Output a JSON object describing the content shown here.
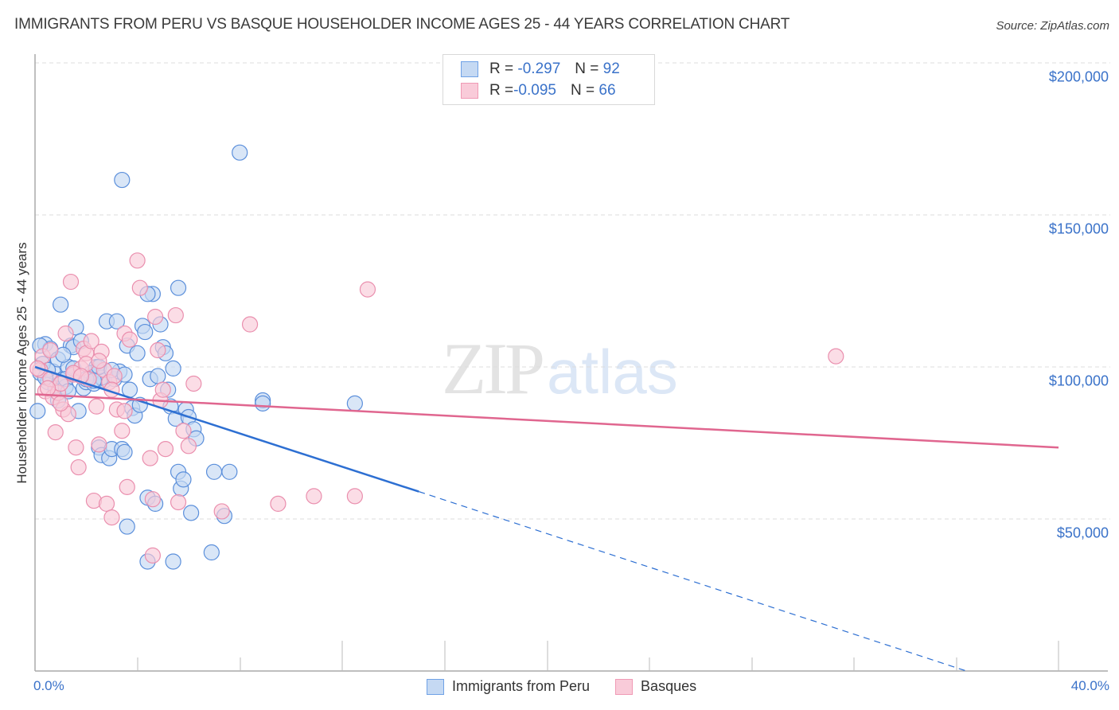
{
  "header": {
    "title": "IMMIGRANTS FROM PERU VS BASQUE HOUSEHOLDER INCOME AGES 25 - 44 YEARS CORRELATION CHART",
    "source": "Source: ZipAtlas.com"
  },
  "legend": {
    "rows": [
      {
        "r_label": "R = ",
        "r_value": "-0.297",
        "n_label": "N = ",
        "n_value": "92",
        "color": "#6fa1e6"
      },
      {
        "r_label": "R = ",
        "r_value": "-0.095",
        "n_label": "N = ",
        "n_value": "66",
        "color": "#f09ab5"
      }
    ]
  },
  "axes": {
    "ylabel": "Householder Income Ages 25 - 44 years",
    "yticks": [
      "$200,000",
      "$150,000",
      "$100,000",
      "$50,000"
    ],
    "xticks": [
      "0.0%",
      "40.0%"
    ]
  },
  "bottom_legend": {
    "series": [
      {
        "label": "Immigrants from Peru"
      },
      {
        "label": "Basques"
      }
    ]
  },
  "watermark": {
    "zip": "ZIP",
    "atlas": "atlas"
  },
  "colors": {
    "blue_fill": "#c5d9f3",
    "blue_stroke": "#5b8fdb",
    "blue_line": "#2d6fd2",
    "pink_fill": "#f9cbd9",
    "pink_stroke": "#ea8fae",
    "pink_line": "#e0668f",
    "tick_text": "#3a72c9"
  },
  "chart_data": {
    "type": "scatter",
    "title": "IMMIGRANTS FROM PERU VS BASQUE HOUSEHOLDER INCOME AGES 25 - 44 YEARS CORRELATION CHART",
    "xlabel": "",
    "ylabel": "Householder Income Ages 25 - 44 years",
    "xlim": [
      0,
      40
    ],
    "ylim": [
      0,
      205000
    ],
    "x_unit": "%",
    "grid": {
      "y_dashed": true,
      "values": [
        50000,
        100000,
        150000,
        200000
      ]
    },
    "legend_position": "bottom-center",
    "series": [
      {
        "name": "Immigrants from Peru",
        "R": -0.297,
        "N": 92,
        "trend": {
          "x": [
            0,
            15
          ],
          "y": [
            100000,
            59000
          ],
          "dashed_extension_to": [
            36.4,
            0
          ]
        },
        "points": [
          [
            0.1,
            85500
          ],
          [
            0.2,
            98000
          ],
          [
            0.3,
            101000
          ],
          [
            0.4,
            107500
          ],
          [
            0.5,
            95000
          ],
          [
            0.6,
            106000
          ],
          [
            0.7,
            98500
          ],
          [
            0.8,
            93000
          ],
          [
            0.9,
            102500
          ],
          [
            1.0,
            120500
          ],
          [
            1.1,
            96000
          ],
          [
            1.2,
            93500
          ],
          [
            1.3,
            100000
          ],
          [
            1.4,
            107000
          ],
          [
            1.5,
            106500
          ],
          [
            1.6,
            113000
          ],
          [
            1.7,
            85500
          ],
          [
            1.8,
            108500
          ],
          [
            1.9,
            93000
          ],
          [
            2.0,
            95000
          ],
          [
            2.2,
            97000
          ],
          [
            2.3,
            94500
          ],
          [
            2.4,
            100000
          ],
          [
            2.5,
            73500
          ],
          [
            2.6,
            71000
          ],
          [
            2.7,
            95500
          ],
          [
            2.8,
            115000
          ],
          [
            2.9,
            70000
          ],
          [
            3.0,
            73000
          ],
          [
            3.1,
            96000
          ],
          [
            3.2,
            115000
          ],
          [
            3.3,
            98500
          ],
          [
            3.4,
            73000
          ],
          [
            3.5,
            72000
          ],
          [
            3.6,
            107000
          ],
          [
            3.7,
            92500
          ],
          [
            3.8,
            86500
          ],
          [
            3.9,
            84000
          ],
          [
            4.0,
            104500
          ],
          [
            4.1,
            87500
          ],
          [
            4.2,
            113500
          ],
          [
            4.3,
            111500
          ],
          [
            4.4,
            57000
          ],
          [
            4.5,
            96000
          ],
          [
            4.6,
            124000
          ],
          [
            4.7,
            55000
          ],
          [
            4.8,
            97000
          ],
          [
            4.9,
            114000
          ],
          [
            5.0,
            106500
          ],
          [
            5.1,
            104500
          ],
          [
            5.2,
            92500
          ],
          [
            5.3,
            87000
          ],
          [
            5.4,
            99500
          ],
          [
            5.5,
            83000
          ],
          [
            5.6,
            65500
          ],
          [
            5.7,
            60000
          ],
          [
            5.8,
            63000
          ],
          [
            5.9,
            86000
          ],
          [
            6.0,
            83500
          ],
          [
            6.1,
            52000
          ],
          [
            6.2,
            79500
          ],
          [
            6.3,
            76500
          ],
          [
            7.0,
            65500
          ],
          [
            7.4,
            51000
          ],
          [
            7.6,
            65500
          ],
          [
            8.9,
            89000
          ],
          [
            8.9,
            88000
          ],
          [
            12.5,
            88000
          ],
          [
            4.4,
            36000
          ],
          [
            5.4,
            36000
          ],
          [
            6.9,
            39000
          ],
          [
            3.6,
            47500
          ],
          [
            8.0,
            170500
          ],
          [
            3.4,
            161500
          ],
          [
            5.6,
            126000
          ],
          [
            4.4,
            124000
          ],
          [
            0.3,
            101000
          ],
          [
            0.5,
            99000
          ],
          [
            1.2,
            96000
          ],
          [
            2.2,
            98000
          ],
          [
            1.5,
            99500
          ],
          [
            2.0,
            96000
          ],
          [
            2.6,
            96500
          ],
          [
            0.4,
            96500
          ],
          [
            0.9,
            89000
          ],
          [
            1.3,
            92000
          ],
          [
            2.5,
            100000
          ],
          [
            3.0,
            99000
          ],
          [
            0.2,
            107000
          ],
          [
            1.1,
            104000
          ],
          [
            2.3,
            95500
          ],
          [
            3.5,
            97500
          ]
        ]
      },
      {
        "name": "Basques",
        "R": -0.095,
        "N": 66,
        "trend": {
          "x": [
            0,
            40
          ],
          "y": [
            91000,
            73500
          ]
        },
        "points": [
          [
            0.2,
            99000
          ],
          [
            0.3,
            103500
          ],
          [
            0.4,
            92000
          ],
          [
            0.6,
            96000
          ],
          [
            0.7,
            90000
          ],
          [
            0.8,
            78500
          ],
          [
            0.9,
            91500
          ],
          [
            1.0,
            94500
          ],
          [
            1.1,
            86000
          ],
          [
            1.2,
            111000
          ],
          [
            1.3,
            84500
          ],
          [
            1.4,
            128000
          ],
          [
            1.5,
            97500
          ],
          [
            1.6,
            73500
          ],
          [
            1.7,
            67000
          ],
          [
            1.8,
            99500
          ],
          [
            1.9,
            106000
          ],
          [
            2.0,
            104500
          ],
          [
            2.1,
            96000
          ],
          [
            2.2,
            108500
          ],
          [
            2.3,
            56000
          ],
          [
            2.4,
            87000
          ],
          [
            2.5,
            74500
          ],
          [
            2.6,
            105000
          ],
          [
            2.7,
            99000
          ],
          [
            2.8,
            55000
          ],
          [
            2.9,
            95000
          ],
          [
            3.0,
            50500
          ],
          [
            3.1,
            97000
          ],
          [
            3.2,
            86000
          ],
          [
            3.4,
            79000
          ],
          [
            3.5,
            111000
          ],
          [
            3.6,
            60500
          ],
          [
            3.7,
            109000
          ],
          [
            4.0,
            135000
          ],
          [
            4.1,
            126000
          ],
          [
            4.5,
            70000
          ],
          [
            4.6,
            56500
          ],
          [
            4.7,
            116500
          ],
          [
            4.8,
            105500
          ],
          [
            4.9,
            89000
          ],
          [
            5.0,
            92500
          ],
          [
            5.1,
            73000
          ],
          [
            5.5,
            117000
          ],
          [
            5.6,
            55500
          ],
          [
            5.8,
            79000
          ],
          [
            6.0,
            74000
          ],
          [
            6.2,
            94500
          ],
          [
            7.3,
            52500
          ],
          [
            8.4,
            114000
          ],
          [
            9.5,
            55000
          ],
          [
            10.9,
            57500
          ],
          [
            12.5,
            57500
          ],
          [
            13.0,
            125500
          ],
          [
            31.3,
            103500
          ],
          [
            4.6,
            38000
          ],
          [
            0.5,
            93000
          ],
          [
            1.0,
            88000
          ],
          [
            1.5,
            98000
          ],
          [
            2.0,
            101000
          ],
          [
            2.5,
            102000
          ],
          [
            3.0,
            92500
          ],
          [
            3.5,
            85500
          ],
          [
            0.1,
            99500
          ],
          [
            0.6,
            105500
          ],
          [
            1.8,
            97000
          ]
        ]
      }
    ]
  }
}
